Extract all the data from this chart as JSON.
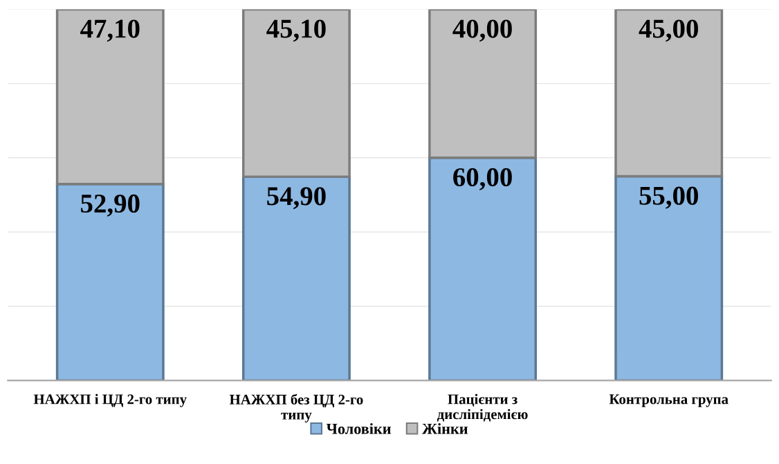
{
  "chart_data": {
    "type": "bar",
    "stacked": true,
    "categories": [
      "НАЖХП і ЦД 2-го типу",
      "НАЖХП без ЦД 2-го типу",
      "Пацієнти з дисліпідемією",
      "Контрольна група"
    ],
    "series": [
      {
        "name": "Чоловіки",
        "color": "#8db8e2",
        "values": [
          52.9,
          54.9,
          60.0,
          55.0
        ],
        "value_labels": [
          "52,90",
          "54,90",
          "60,00",
          "55,00"
        ]
      },
      {
        "name": "Жінки",
        "color": "#bfbfbf",
        "values": [
          47.1,
          45.1,
          40.0,
          45.0
        ],
        "value_labels": [
          "47,10",
          "45,10",
          "40,00",
          "45,00"
        ]
      }
    ],
    "ylim": [
      0,
      100
    ],
    "yticks": [
      {
        "value": 0,
        "label": null
      },
      {
        "value": 20,
        "label": null
      },
      {
        "value": 40,
        "label": null
      },
      {
        "value": 60,
        "label": null
      },
      {
        "value": 80,
        "label": null
      },
      {
        "value": 100,
        "label": null
      }
    ],
    "tick_labels": "x",
    "grid": "y",
    "legend": "bottom"
  }
}
